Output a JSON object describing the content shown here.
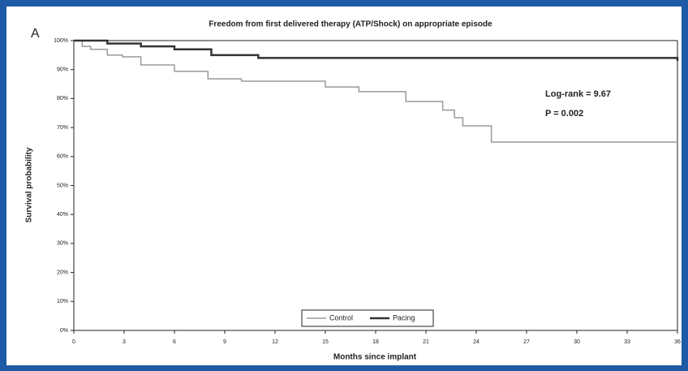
{
  "chart_data": {
    "type": "step",
    "panel_label": "A",
    "title": "Freedom from first delivered therapy (ATP/Shock) on appropriate episode",
    "x_label": "Months since implant",
    "y_label": "Survival probability",
    "annotations": [
      "Log-rank = 9.67",
      "P = 0.002"
    ],
    "xlim": [
      0,
      36
    ],
    "xticks": [
      0,
      3,
      6,
      9,
      12,
      15,
      18,
      21,
      24,
      27,
      30,
      33,
      36
    ],
    "ylim": [
      0,
      100
    ],
    "yticks": [
      {
        "value": 0,
        "label": "0%"
      },
      {
        "value": 10,
        "label": "10%"
      },
      {
        "value": 20,
        "label": "20%"
      },
      {
        "value": 30,
        "label": "30%"
      },
      {
        "value": 40,
        "label": "40%"
      },
      {
        "value": 50,
        "label": "50%"
      },
      {
        "value": 60,
        "label": "60%"
      },
      {
        "value": 70,
        "label": "70%"
      },
      {
        "value": 80,
        "label": "80%"
      },
      {
        "value": 90,
        "label": "90%"
      },
      {
        "value": 100,
        "label": "100%"
      }
    ],
    "series": [
      {
        "name": "Control",
        "color": "#9a9a9a",
        "x": [
          0,
          0.5,
          1,
          2,
          2.9,
          4,
          6,
          8,
          10,
          15,
          17,
          19.8,
          22,
          22.7,
          23.2,
          24.9,
          36
        ],
        "values": [
          100,
          98,
          97,
          95,
          94.4,
          91.6,
          89.4,
          86.8,
          86,
          84,
          82.4,
          79,
          76,
          73.4,
          70.6,
          65,
          65
        ]
      },
      {
        "name": "Pacing",
        "color": "#333333",
        "x": [
          0,
          2,
          4,
          6,
          8.2,
          11,
          36
        ],
        "values": [
          100,
          99,
          98,
          97,
          95,
          94,
          93
        ]
      }
    ]
  }
}
